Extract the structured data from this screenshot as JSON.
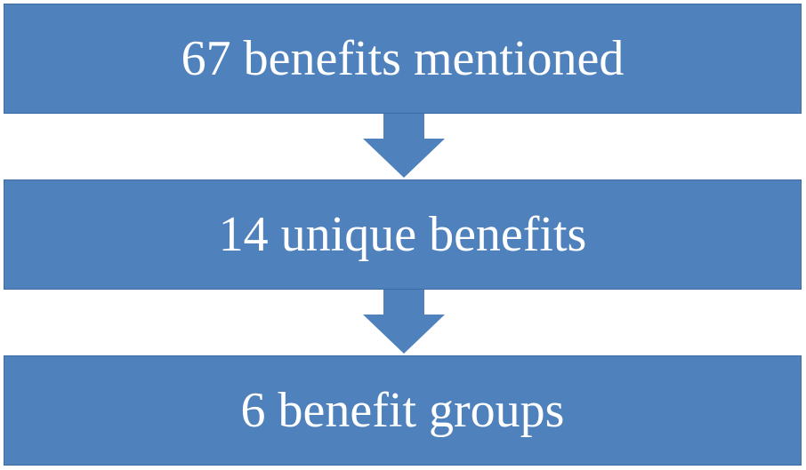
{
  "flow": {
    "steps": [
      {
        "label": "67 benefits mentioned"
      },
      {
        "label": "14 unique benefits"
      },
      {
        "label": "6 benefit groups"
      }
    ]
  },
  "colors": {
    "box_fill": "#4f81bd",
    "box_border": "#3f6da3",
    "arrow_fill": "#4f81bd",
    "text": "#ffffff",
    "background": "#ffffff"
  }
}
